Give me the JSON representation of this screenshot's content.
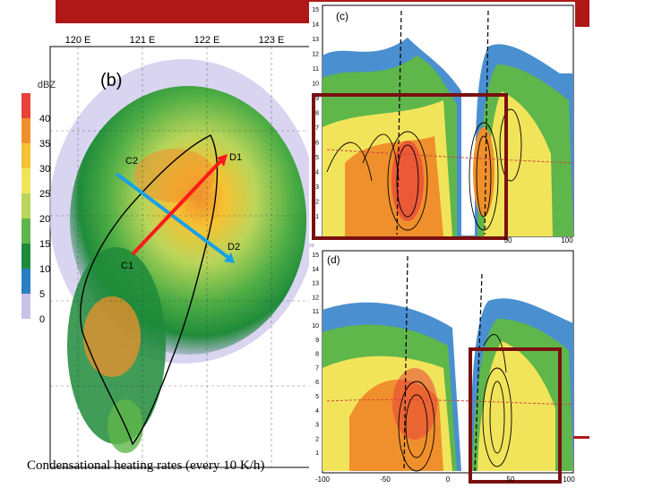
{
  "map": {
    "lon_labels": [
      "120 E",
      "121 E",
      "122 E",
      "123 E"
    ],
    "panel_label": "(b)",
    "colorbar": {
      "title": "dBZ",
      "ticks": [
        "40",
        "35",
        "30",
        "25",
        "20",
        "15",
        "10",
        "5",
        "0"
      ],
      "colors": [
        "#e8423a",
        "#f0902c",
        "#f5c233",
        "#f2e45a",
        "#b9d55a",
        "#5fb64b",
        "#1f8b3a",
        "#2b7ec2",
        "#c9c2ea",
        "#ffffff"
      ]
    },
    "line_labels": {
      "c1": "C1",
      "c2": "C2",
      "d1": "D1",
      "d2": "D2"
    }
  },
  "panel_c": {
    "label": "(c)",
    "y_ticks": [
      "15",
      "14",
      "13",
      "12",
      "11",
      "10",
      "9",
      "8",
      "7",
      "6",
      "5",
      "4",
      "3",
      "2",
      "1"
    ],
    "x_ticks": [
      "50",
      "100"
    ]
  },
  "panel_d": {
    "label": "(d)",
    "y_ticks": [
      "15",
      "14",
      "13",
      "12",
      "11",
      "10",
      "9",
      "8",
      "7",
      "6",
      "5",
      "4",
      "3",
      "2",
      "1"
    ],
    "x_ticks": [
      "-100",
      "-50",
      "0",
      "50",
      "100"
    ]
  },
  "caption": "Condensational heating rates (every 10 K/h)",
  "colors": {
    "accent_red": "#b01818",
    "highlight_box": "#7a1010",
    "arrow_red": "#ff1a1a",
    "arrow_blue": "#1aa0e8"
  }
}
